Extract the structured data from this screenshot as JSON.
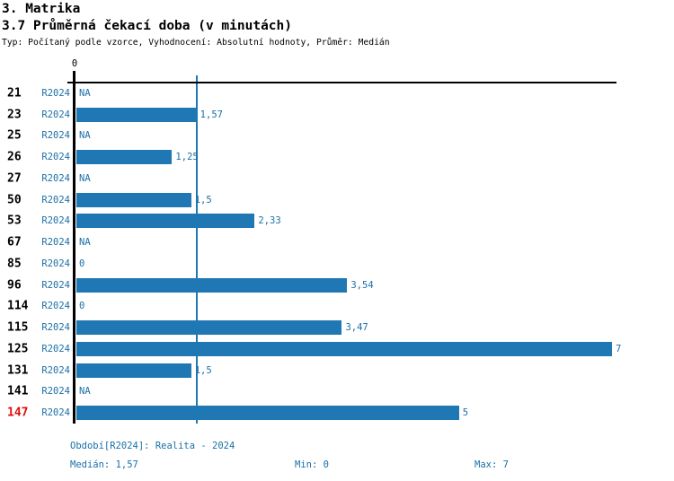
{
  "header": {
    "title": "3. Matrika",
    "subtitle": "3.7 Průměrná čekací doba (v minutách)",
    "meta": "Typ: Počítaný podle vzorce, Vyhodnocení: Absolutní hodnoty, Průměr: Medián"
  },
  "colors": {
    "bar": "#1f77b4",
    "blue_text": "#1b6fa8",
    "highlight": "#e01010",
    "axis": "#000000"
  },
  "chart_data": {
    "type": "bar",
    "orientation": "horizontal",
    "title": "3.7 Průměrná čekací doba (v minutách)",
    "xlabel": "",
    "ylabel": "",
    "xlim": [
      0,
      7
    ],
    "axis_tick_label": "0",
    "median_line_value": 1.57,
    "grid": false,
    "legend": false,
    "series_label": "R2024",
    "categories": [
      "21",
      "23",
      "25",
      "26",
      "27",
      "50",
      "53",
      "67",
      "85",
      "96",
      "114",
      "115",
      "125",
      "131",
      "141",
      "147"
    ],
    "values": [
      null,
      1.57,
      null,
      1.25,
      null,
      1.5,
      2.33,
      null,
      0,
      3.54,
      0,
      3.47,
      7,
      1.5,
      null,
      5
    ],
    "value_labels": [
      "NA",
      "1,57",
      "NA",
      "1,25",
      "NA",
      "1,5",
      "2,33",
      "NA",
      "0",
      "3,54",
      "0",
      "3,47",
      "7",
      "1,5",
      "NA",
      "5"
    ],
    "highlighted_categories": [
      "147"
    ]
  },
  "footer": {
    "period": "Období[R2024]: Realita - 2024",
    "median": "Medián: 1,57",
    "min": "Min: 0",
    "max": "Max: 7"
  }
}
